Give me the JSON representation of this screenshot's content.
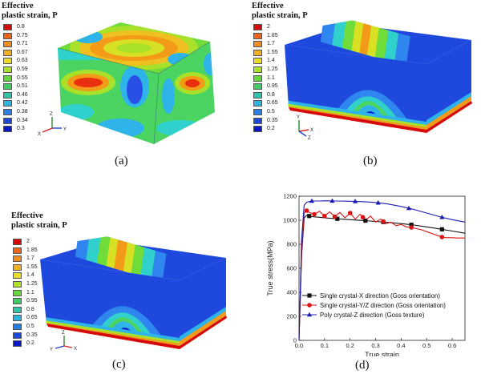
{
  "colors": {
    "scale": [
      "#0b16c8",
      "#2a4fe6",
      "#2f86ee",
      "#2fb4ea",
      "#30d0cc",
      "#38d49a",
      "#4cd462",
      "#6fdc3a",
      "#a8e02a",
      "#d8e024",
      "#f0c020",
      "#f39a18",
      "#f06a14",
      "#e83010",
      "#d80808"
    ],
    "legend_swatches": [
      "#d80808",
      "#f0641a",
      "#f08c20",
      "#f0b020",
      "#e8dc24",
      "#aee228",
      "#62d83a",
      "#40cc62",
      "#30c4a8",
      "#2cb4de",
      "#2a7ee8",
      "#1f48dc",
      "#0b16c8"
    ]
  },
  "panels": {
    "a": {
      "title_line1": "Effective",
      "title_line2": "plastic strain, P",
      "legend_values": [
        "0.8",
        "0.75",
        "0.71",
        "0.67",
        "0.63",
        "0.59",
        "0.55",
        "0.51",
        "0.46",
        "0.42",
        "0.38",
        "0.34",
        "0.3"
      ],
      "axis_labels": {
        "z": "Z",
        "x": "X",
        "y": "Y"
      },
      "caption": "(a)"
    },
    "b": {
      "title_line1": "Effective",
      "title_line2": "plastic strain, P",
      "legend_values": [
        "2",
        "1.85",
        "1.7",
        "1.55",
        "1.4",
        "1.25",
        "1.1",
        "0.95",
        "0.8",
        "0.65",
        "0.5",
        "0.35",
        "0.2"
      ],
      "axis_labels": {
        "y": "Y",
        "x": "X",
        "z": "Z"
      },
      "caption": "(b)"
    },
    "c": {
      "title_line1": "Effective",
      "title_line2": "plastic strain, P",
      "legend_values": [
        "2",
        "1.85",
        "1.7",
        "1.55",
        "1.4",
        "1.25",
        "1.1",
        "0.95",
        "0.8",
        "0.65",
        "0.5",
        "0.35",
        "0.2"
      ],
      "axis_labels": {
        "z": "Z",
        "y": "Y",
        "x": "X"
      },
      "caption": "(c)"
    },
    "d": {
      "caption": "(d)"
    }
  },
  "chart_data": {
    "type": "line",
    "xlabel": "True strain",
    "ylabel": "True stress(MPa)",
    "xlim": [
      0,
      0.65
    ],
    "ylim": [
      0,
      1200
    ],
    "xticks": [
      "0.0",
      "0.1",
      "0.2",
      "0.3",
      "0.4",
      "0.5",
      "0.6"
    ],
    "yticks": [
      "0",
      "200",
      "400",
      "600",
      "800",
      "1000",
      "1200"
    ],
    "legend_position": "bottom",
    "series": [
      {
        "name": "Single crystal-X direction (Goss orientation)",
        "color": "#111111",
        "marker": "square",
        "x": [
          0,
          0.01,
          0.02,
          0.03,
          0.05,
          0.08,
          0.1,
          0.15,
          0.2,
          0.25,
          0.3,
          0.35,
          0.4,
          0.45,
          0.5,
          0.55,
          0.6,
          0.65
        ],
        "y": [
          0,
          700,
          1020,
          1040,
          1030,
          1025,
          1020,
          1012,
          1005,
          998,
          990,
          982,
          972,
          960,
          945,
          928,
          910,
          892
        ],
        "marker_x": [
          0.04,
          0.15,
          0.26,
          0.33,
          0.44,
          0.56
        ]
      },
      {
        "name": "Single crystal-Y/Z direction (Goss orientation)",
        "color": "#dd1111",
        "marker": "circle",
        "x": [
          0,
          0.01,
          0.02,
          0.03,
          0.04,
          0.06,
          0.08,
          0.1,
          0.12,
          0.14,
          0.16,
          0.18,
          0.2,
          0.22,
          0.24,
          0.26,
          0.28,
          0.3,
          0.32,
          0.34,
          0.36,
          0.38,
          0.4,
          0.42,
          0.44,
          0.46,
          0.48,
          0.5,
          0.52,
          0.54,
          0.56,
          0.58,
          0.6,
          0.62,
          0.65
        ],
        "y": [
          0,
          740,
          1060,
          1080,
          1065,
          1050,
          1075,
          1035,
          1070,
          1030,
          1065,
          1020,
          1060,
          1010,
          1050,
          1000,
          1035,
          985,
          1010,
          970,
          985,
          955,
          965,
          945,
          940,
          930,
          920,
          905,
          890,
          875,
          860,
          855,
          855,
          852,
          852
        ],
        "marker_x": [
          0.03,
          0.06,
          0.1,
          0.14,
          0.2,
          0.25,
          0.33,
          0.44,
          0.56
        ]
      },
      {
        "name": "Poly crystal-Z direction (Goss texture)",
        "color": "#1c1cb0",
        "marker": "triangle",
        "x": [
          0,
          0.01,
          0.02,
          0.03,
          0.05,
          0.08,
          0.1,
          0.15,
          0.2,
          0.25,
          0.3,
          0.35,
          0.4,
          0.45,
          0.5,
          0.55,
          0.6,
          0.65
        ],
        "y": [
          0,
          840,
          1125,
          1150,
          1160,
          1160,
          1162,
          1160,
          1158,
          1155,
          1148,
          1135,
          1115,
          1090,
          1060,
          1030,
          1005,
          985
        ],
        "marker_x": [
          0.05,
          0.13,
          0.22,
          0.31,
          0.43,
          0.56
        ]
      }
    ]
  }
}
